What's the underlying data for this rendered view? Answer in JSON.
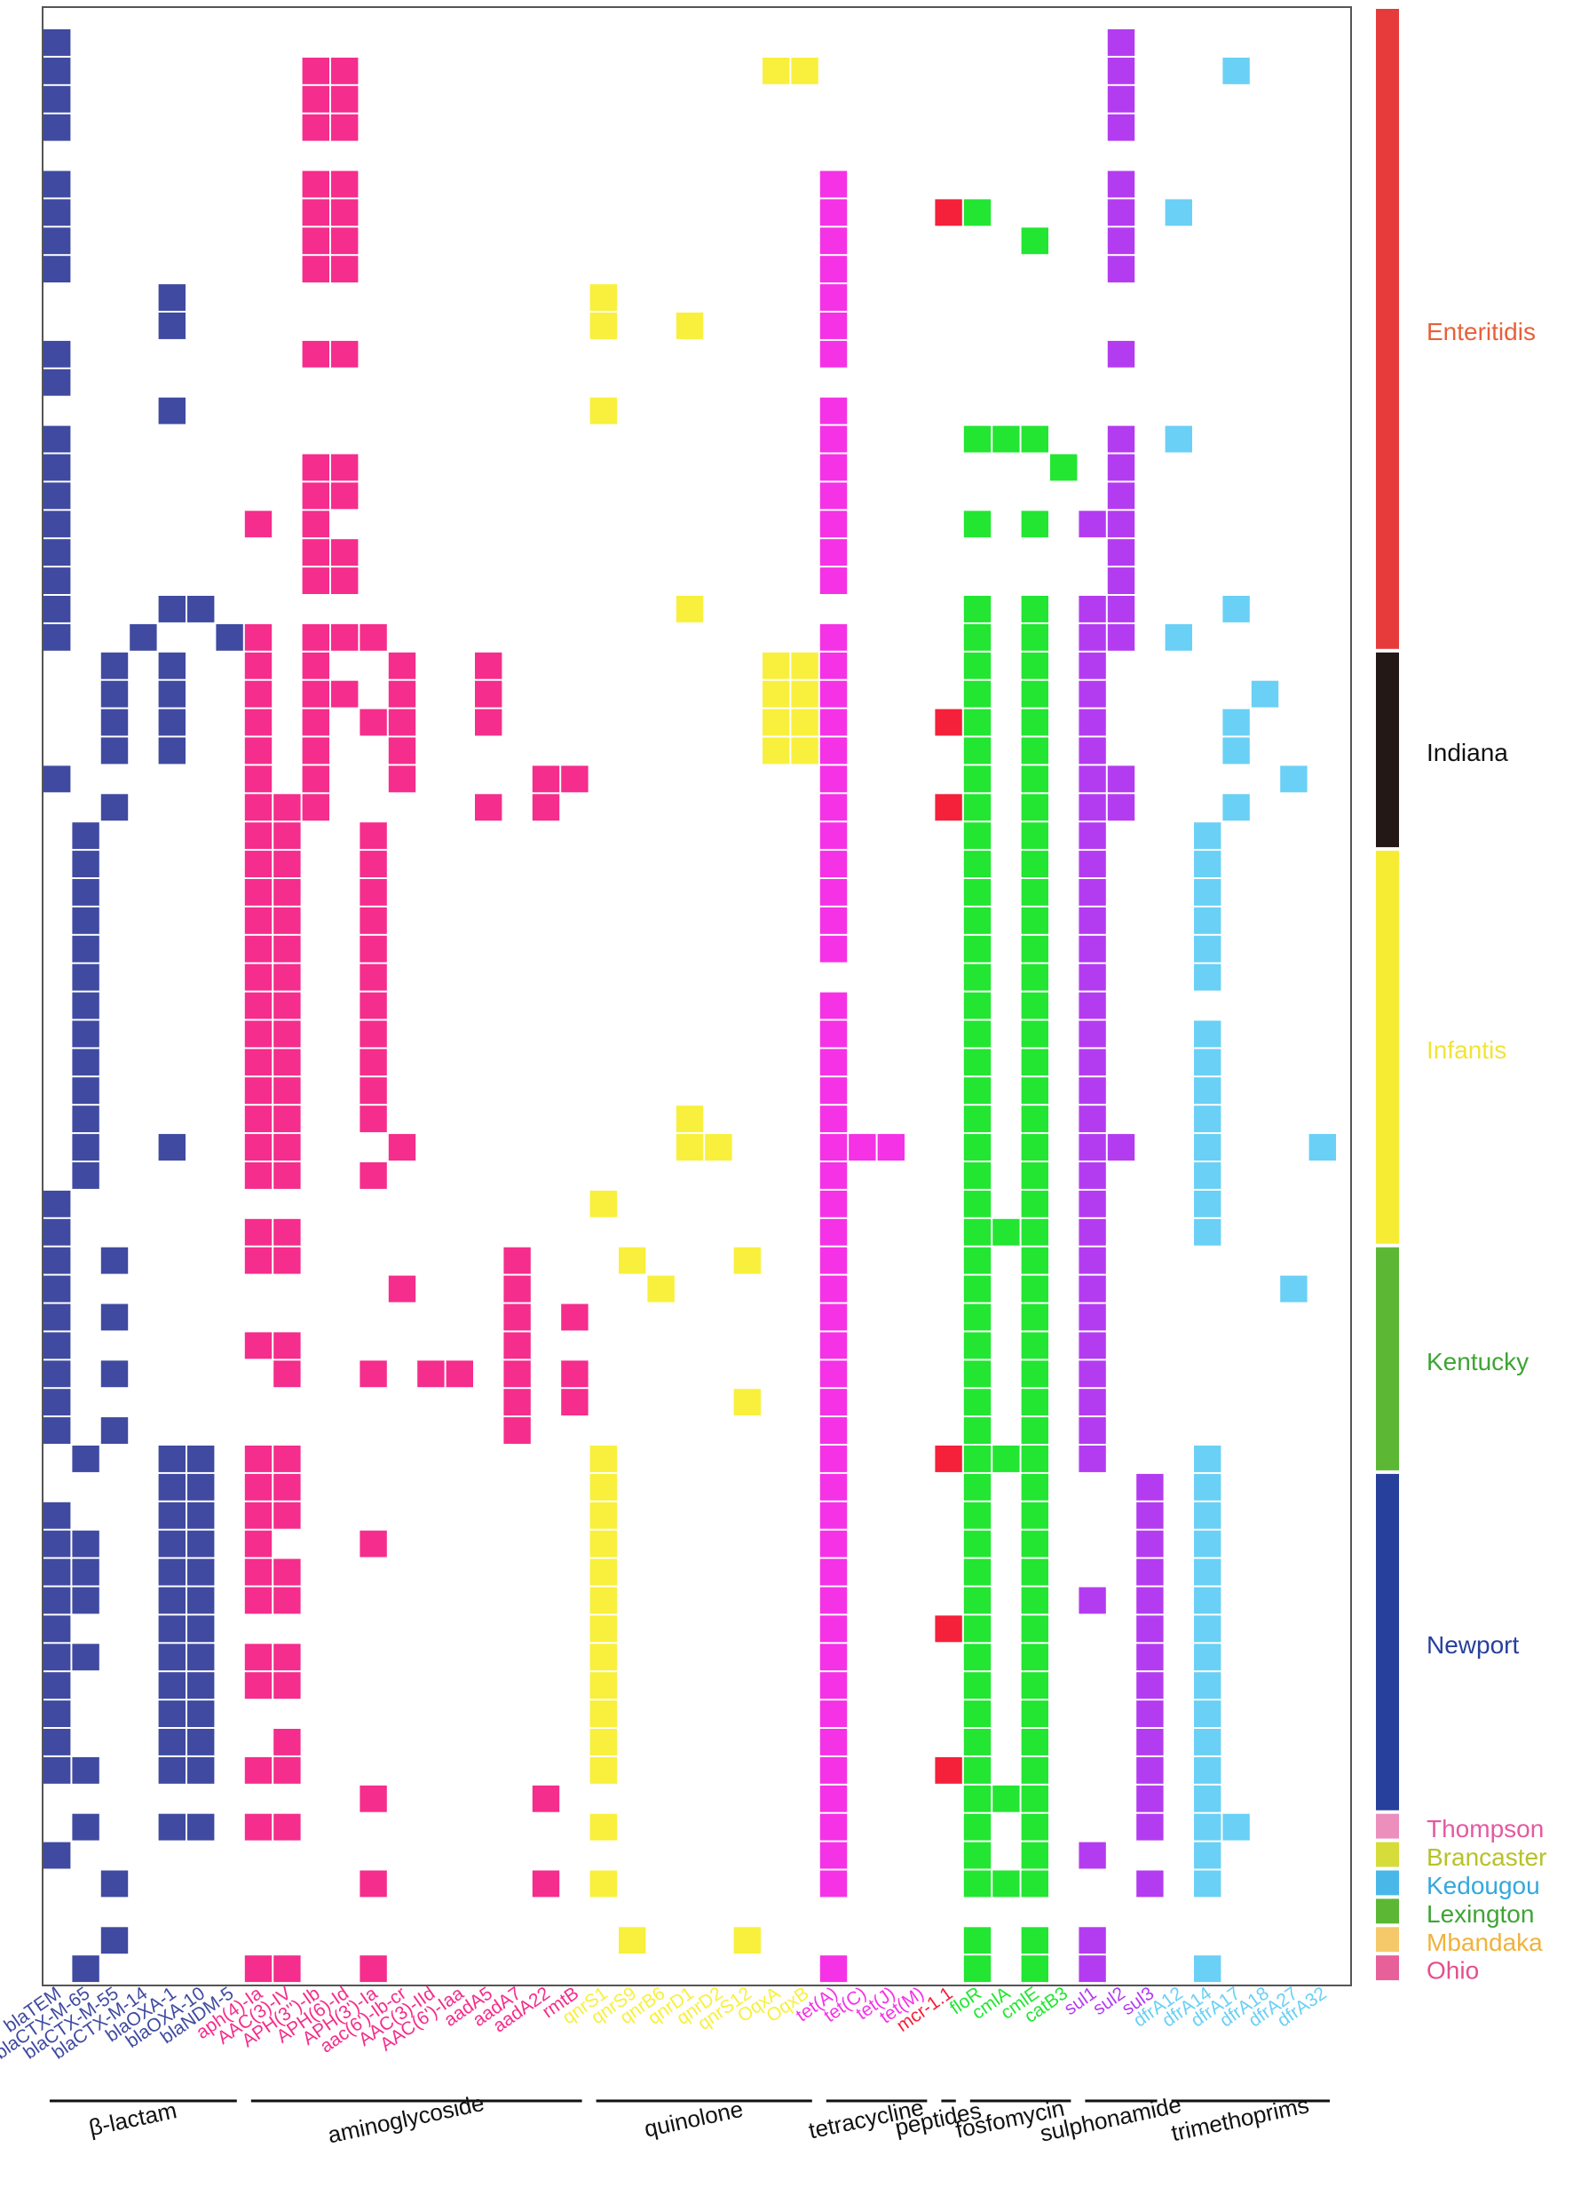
{
  "chart_data": {
    "type": "heatmap",
    "title": "",
    "xlabel": "",
    "ylabel": "",
    "genes": [
      {
        "name": "blaTEM",
        "class": "β-lactam",
        "color": "#3f4aa0"
      },
      {
        "name": "blaCTX-M-65",
        "class": "β-lactam",
        "color": "#3f4aa0"
      },
      {
        "name": "blaCTX-M-55",
        "class": "β-lactam",
        "color": "#3f4aa0"
      },
      {
        "name": "blaCTX-M-14",
        "class": "β-lactam",
        "color": "#3f4aa0"
      },
      {
        "name": "blaOXA-1",
        "class": "β-lactam",
        "color": "#3f4aa0"
      },
      {
        "name": "blaOXA-10",
        "class": "β-lactam",
        "color": "#3f4aa0"
      },
      {
        "name": "blaNDM-5",
        "class": "β-lactam",
        "color": "#3f4aa0"
      },
      {
        "name": "aph(4)-Ia",
        "class": "aminoglycoside",
        "color": "#f52d8c"
      },
      {
        "name": "AAC(3)-IV",
        "class": "aminoglycoside",
        "color": "#f52d8c"
      },
      {
        "name": "APH(3'')-Ib",
        "class": "aminoglycoside",
        "color": "#f52d8c"
      },
      {
        "name": "APH(6)-Id",
        "class": "aminoglycoside",
        "color": "#f52d8c"
      },
      {
        "name": "APH(3')-Ia",
        "class": "aminoglycoside",
        "color": "#f52d8c"
      },
      {
        "name": "aac(6')-Ib-cr",
        "class": "aminoglycoside",
        "color": "#f52d8c"
      },
      {
        "name": "AAC(3)-IId",
        "class": "aminoglycoside",
        "color": "#f52d8c"
      },
      {
        "name": "AAC(6')-Iaa",
        "class": "aminoglycoside",
        "color": "#f52d8c"
      },
      {
        "name": "aadA5",
        "class": "aminoglycoside",
        "color": "#f52d8c"
      },
      {
        "name": "aadA7",
        "class": "aminoglycoside",
        "color": "#f52d8c"
      },
      {
        "name": "aadA22",
        "class": "aminoglycoside",
        "color": "#f52d8c"
      },
      {
        "name": "rmtB",
        "class": "aminoglycoside",
        "color": "#f52d8c"
      },
      {
        "name": "qnrS1",
        "class": "quinolone",
        "color": "#f8f03c"
      },
      {
        "name": "qnrS9",
        "class": "quinolone",
        "color": "#f8f03c"
      },
      {
        "name": "qnrB6",
        "class": "quinolone",
        "color": "#f8f03c"
      },
      {
        "name": "qnrD1",
        "class": "quinolone",
        "color": "#f8f03c"
      },
      {
        "name": "qnrD2",
        "class": "quinolone",
        "color": "#f8f03c"
      },
      {
        "name": "qnrS12",
        "class": "quinolone",
        "color": "#f8f03c"
      },
      {
        "name": "OqxA",
        "class": "quinolone",
        "color": "#f8f03c"
      },
      {
        "name": "OqxB",
        "class": "quinolone",
        "color": "#f8f03c"
      },
      {
        "name": "tet(A)",
        "class": "tetracycline",
        "color": "#f532e6"
      },
      {
        "name": "tet(C)",
        "class": "tetracycline",
        "color": "#f532e6"
      },
      {
        "name": "tet(J)",
        "class": "tetracycline",
        "color": "#f532e6"
      },
      {
        "name": "tet(M)",
        "class": "tetracycline",
        "color": "#f532e6"
      },
      {
        "name": "mcr-1.1",
        "class": "peptides",
        "color": "#f5203a"
      },
      {
        "name": "floR",
        "class": "fosfomycin",
        "color": "#22e632"
      },
      {
        "name": "cmlA",
        "class": "fosfomycin",
        "color": "#22e632"
      },
      {
        "name": "cmlE",
        "class": "fosfomycin",
        "color": "#22e632"
      },
      {
        "name": "catB3",
        "class": "fosfomycin",
        "color": "#22e632"
      },
      {
        "name": "sul1",
        "class": "sulphonamide",
        "color": "#b43cf0"
      },
      {
        "name": "sul2",
        "class": "sulphonamide",
        "color": "#b43cf0"
      },
      {
        "name": "sul3",
        "class": "sulphonamide",
        "color": "#b43cf0"
      },
      {
        "name": "dfrA12",
        "class": "trimethoprims",
        "color": "#6ad0f5"
      },
      {
        "name": "dfrA14",
        "class": "trimethoprims",
        "color": "#6ad0f5"
      },
      {
        "name": "dfrA17",
        "class": "trimethoprims",
        "color": "#6ad0f5"
      },
      {
        "name": "dfrA18",
        "class": "trimethoprims",
        "color": "#6ad0f5"
      },
      {
        "name": "dfrA27",
        "class": "trimethoprims",
        "color": "#6ad0f5"
      },
      {
        "name": "dfrA32",
        "class": "trimethoprims",
        "color": "#6ad0f5"
      }
    ],
    "classes": [
      {
        "name": "β-lactam",
        "first": 0,
        "last": 6
      },
      {
        "name": "aminoglycoside",
        "first": 7,
        "last": 18
      },
      {
        "name": "quinolone",
        "first": 19,
        "last": 26
      },
      {
        "name": "tetracycline",
        "first": 27,
        "last": 30
      },
      {
        "name": "peptides",
        "first": 31,
        "last": 31
      },
      {
        "name": "fosfomycin",
        "first": 32,
        "last": 35
      },
      {
        "name": "sulphonamide",
        "first": 36,
        "last": 38
      },
      {
        "name": "trimethoprims",
        "first": 39,
        "last": 44
      }
    ],
    "serovars": [
      {
        "name": "Enteritidis",
        "first": 0,
        "last": 21,
        "color": "#e63b3b",
        "label_color": "#e8603a"
      },
      {
        "name": "Indiana",
        "first": 22,
        "last": 28,
        "color": "#231815",
        "label_color": "#111111"
      },
      {
        "name": "Infantis",
        "first": 29,
        "last": 42,
        "color": "#f7ec34",
        "label_color": "#f2e436"
      },
      {
        "name": "Kentucky",
        "first": 43,
        "last": 50,
        "color": "#5cb834",
        "label_color": "#3fa434"
      },
      {
        "name": "Newport",
        "first": 51,
        "last": 62,
        "color": "#27409b",
        "label_color": "#27409b"
      },
      {
        "name": "Thompson",
        "first": 63,
        "last": 63,
        "color": "#ec8fbd",
        "label_color": "#e35aa0"
      },
      {
        "name": "Brancaster",
        "first": 64,
        "last": 64,
        "color": "#d6dc3a",
        "label_color": "#b7c229"
      },
      {
        "name": "Kedougou",
        "first": 65,
        "last": 65,
        "color": "#49b8e8",
        "label_color": "#35a8dc"
      },
      {
        "name": "Lexington",
        "first": 66,
        "last": 66,
        "color": "#5cb834",
        "label_color": "#3fa434"
      },
      {
        "name": "Mbandaka",
        "first": 67,
        "last": 67,
        "color": "#f5c96a",
        "label_color": "#f0b23c"
      },
      {
        "name": "Ohio",
        "first": 68,
        "last": 68,
        "color": "#e8609a",
        "label_color": "#e3508e"
      }
    ],
    "n_isolates": 70,
    "rows": [
      "0,37",
      "0,9,10,25,26,37,41",
      "0,9,10,37",
      "0,9,10,37",
      "",
      "0,9,10,27,37",
      "0,9,10,27,31,32,37,39",
      "0,9,10,27,34,37",
      "0,9,10,27,37",
      "4,19,27",
      "4,19,22,27",
      "0,9,10,27,37",
      "0",
      "4,19,27",
      "0,27,32,33,34,37,39",
      "0,9,10,27,35,37",
      "0,9,10,27,37",
      "0,7,9,27,32,34,36,37",
      "0,9,10,27,37",
      "0,9,10,27,37",
      "0,4,5,22,32,34,36,37,41",
      "0,3,6,7,9,10,11,27,32,34,36,37,39",
      "2,4,7,9,12,15,25,26,27,32,34,36",
      "2,4,7,9,10,12,15,25,26,27,32,34,36,42",
      "2,4,7,9,11,12,15,25,26,27,31,32,34,36,41",
      "2,4,7,9,12,25,26,27,32,34,36,41",
      "0,7,9,12,17,18,27,32,34,36,37,43",
      "2,7,8,9,15,17,27,31,32,34,36,37,41",
      "1,7,8,11,27,32,34,36,40",
      "1,7,8,11,27,32,34,36,40",
      "1,7,8,11,27,32,34,36,40",
      "1,7,8,11,27,32,34,36,40",
      "1,7,8,11,27,32,34,36,40",
      "1,7,8,11,32,34,36,40",
      "1,7,8,11,27,32,34,36",
      "1,7,8,11,27,32,34,36,40",
      "1,7,8,11,27,32,34,36,40",
      "1,7,8,11,27,32,34,36,40",
      "1,7,8,11,22,27,32,34,36,40",
      "1,4,7,8,12,22,23,27,28,29,32,34,36,37,40,44",
      "1,7,8,11,27,32,34,36,40",
      "0,19,27,32,34,36,40",
      "0,7,8,27,32,33,34,36,40",
      "0,2,7,8,16,20,24,27,32,34,36",
      "0,12,16,21,27,32,34,36,43",
      "0,2,16,18,27,32,34,36",
      "0,7,8,16,27,32,34,36",
      "0,2,8,11,13,14,16,18,27,32,34,36",
      "0,16,18,24,27,32,34,36",
      "0,2,16,27,32,34,36",
      "1,4,5,7,8,19,27,31,32,33,34,36,40",
      "4,5,7,8,19,27,32,34,38,40",
      "0,4,5,7,8,19,27,32,34,38,40",
      "0,1,4,5,7,11,19,27,32,34,38,40",
      "0,1,4,5,7,8,19,27,32,34,38,40",
      "0,1,4,5,7,8,19,27,32,34,36,38,40",
      "0,4,5,19,27,31,32,34,38,40",
      "0,1,4,5,7,8,19,27,32,34,38,40",
      "0,4,5,7,8,19,27,32,34,38,40",
      "0,4,5,19,27,32,34,38,40",
      "0,4,5,8,19,27,32,34,38,40",
      "0,1,4,5,7,8,19,27,31,32,34,38,40",
      "11,17,27,32,33,34,38,40",
      "1,4,5,7,8,19,27,32,34,38,40,41",
      "0,27,32,34,36,40",
      "2,11,17,19,27,32,33,34,38,40",
      "",
      "2,20,24,32,34,36",
      "1,7,8,11,27,32,34,36,40",
      ""
    ]
  }
}
